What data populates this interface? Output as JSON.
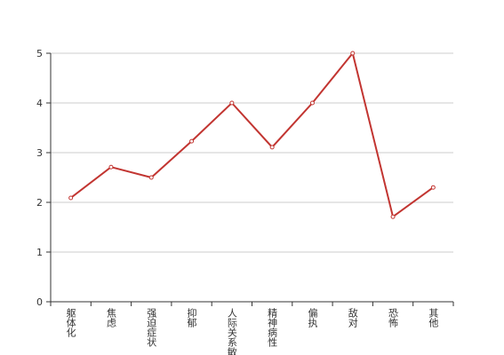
{
  "chart_data": {
    "type": "line",
    "categories": [
      "躯体化",
      "焦虑",
      "强迫症状",
      "抑郁",
      "人际关系敏感",
      "精神病性",
      "偏执",
      "敌对",
      "恐怖",
      "其他"
    ],
    "series": [
      {
        "color": "#c23531",
        "values": [
          2.09,
          2.71,
          2.5,
          3.23,
          4.0,
          3.11,
          4.0,
          5.0,
          1.71,
          2.3
        ]
      }
    ],
    "ylim": [
      0,
      5
    ],
    "yticks": [
      0,
      1,
      2,
      3,
      4,
      5
    ],
    "grid": true
  }
}
